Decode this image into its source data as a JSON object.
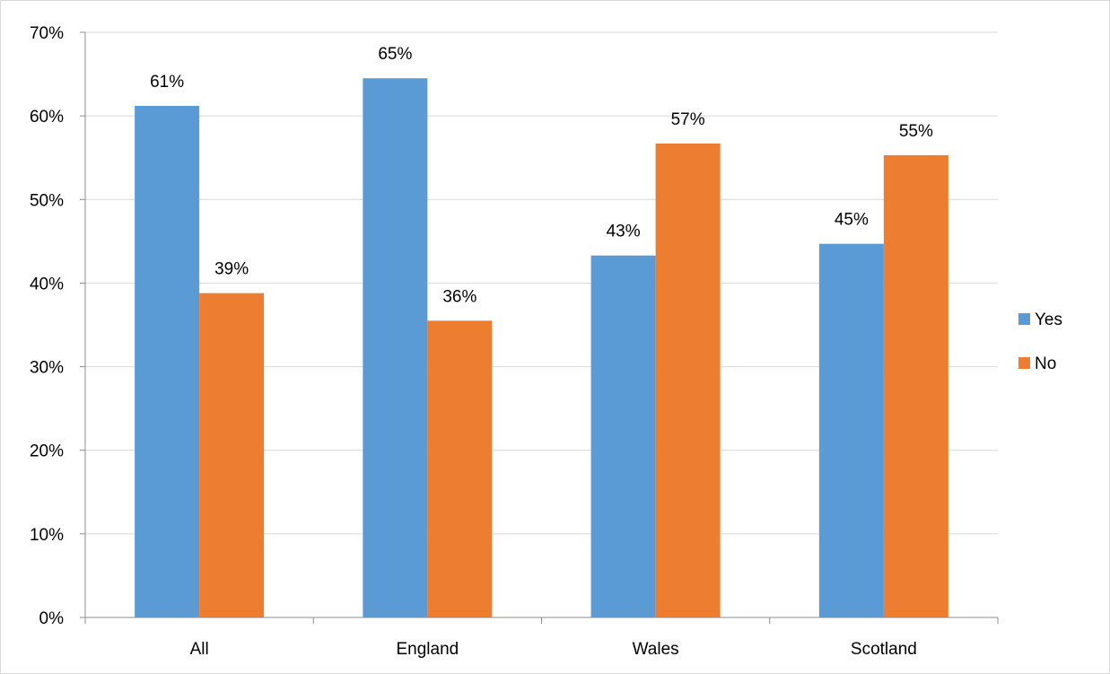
{
  "chart_data": {
    "type": "bar",
    "title": "",
    "xlabel": "",
    "ylabel": "",
    "categories": [
      "All",
      "England",
      "Wales",
      "Scotland"
    ],
    "series": [
      {
        "name": "Yes",
        "color": "#5b9bd5",
        "values": [
          61.2,
          64.5,
          43.3,
          44.7
        ],
        "labels": [
          "61%",
          "65%",
          "43%",
          "45%"
        ]
      },
      {
        "name": "No",
        "color": "#ed7d31",
        "values": [
          38.8,
          35.5,
          56.7,
          55.3
        ],
        "labels": [
          "39%",
          "36%",
          "57%",
          "55%"
        ]
      }
    ],
    "ylim": [
      0,
      70
    ],
    "yticks": [
      0,
      10,
      20,
      30,
      40,
      50,
      60,
      70
    ],
    "ytick_labels": [
      "0%",
      "10%",
      "20%",
      "30%",
      "40%",
      "50%",
      "60%",
      "70%"
    ],
    "grid": true,
    "gridline_color": "#d9d9d9",
    "axis_color": "#8c8c8c",
    "legend_position": "right"
  }
}
